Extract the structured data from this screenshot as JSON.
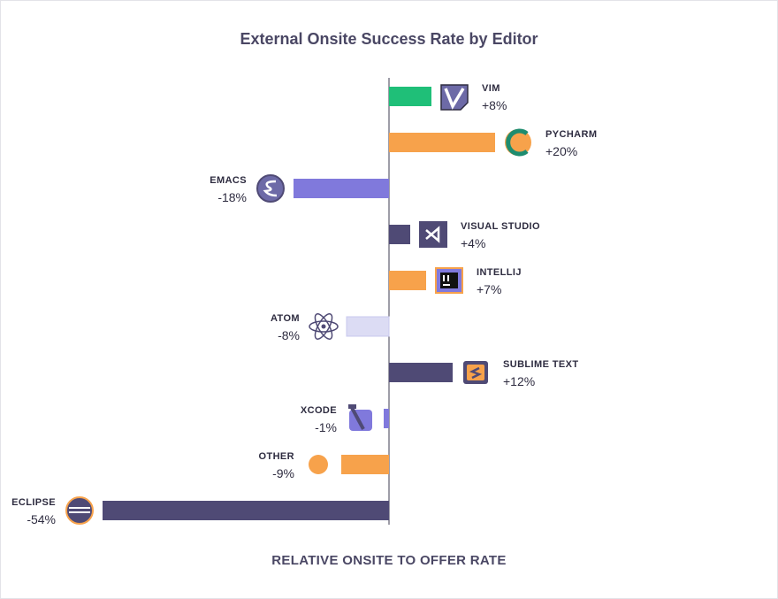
{
  "chart_data": {
    "type": "bar",
    "orientation": "horizontal",
    "title": "External Onsite Success Rate by Editor",
    "xlabel": "RELATIVE ONSITE TO OFFER RATE",
    "ylabel": "",
    "xlim": [
      -54,
      24
    ],
    "grid": false,
    "categories": [
      "VIM",
      "PYCHARM",
      "EMACS",
      "VISUAL STUDIO",
      "INTELLIJ",
      "ATOM",
      "SUBLIME TEXT",
      "XCODE",
      "OTHER",
      "ECLIPSE"
    ],
    "values": [
      8,
      20,
      -18,
      4,
      7,
      -8,
      12,
      -1,
      -9,
      -54
    ],
    "value_labels": [
      "+8%",
      "+20%",
      "-18%",
      "+4%",
      "+7%",
      "-8%",
      "+12%",
      "-1%",
      "-9%",
      "-54%"
    ],
    "colors": [
      "#1fbf78",
      "#f7a24b",
      "#8079dc",
      "#4f4a75",
      "#f7a24b",
      "#c9c8ee",
      "#4f4a75",
      "#8079dc",
      "#f7a24b",
      "#4f4a75"
    ],
    "icons": [
      "vim-icon",
      "pycharm-icon",
      "emacs-icon",
      "visual-studio-icon",
      "intellij-icon",
      "atom-icon",
      "sublime-text-icon",
      "xcode-icon",
      "other-icon",
      "eclipse-icon"
    ]
  }
}
